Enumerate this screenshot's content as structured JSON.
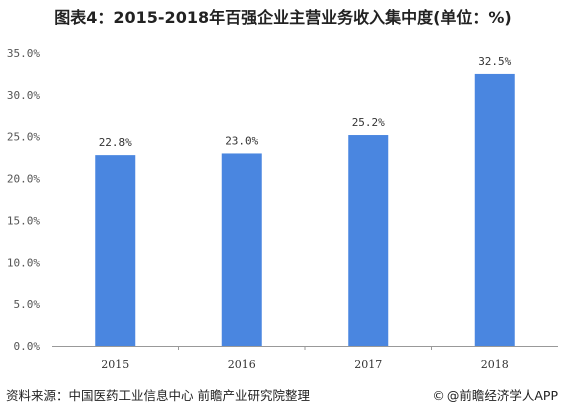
{
  "title": "图表4：2015-2018年百强企业主营业务收入集中度(单位：%)",
  "footer": {
    "source": "资料来源：中国医药工业信息中心 前瞻产业研究院整理",
    "brand_icon": "copyright-circle-icon",
    "brand": "@前瞻经济学人APP"
  },
  "colors": {
    "bar": "#4a86e0",
    "axis": "#999999",
    "text": "#222222"
  },
  "chart_data": {
    "type": "bar",
    "categories": [
      "2015",
      "2016",
      "2017",
      "2018"
    ],
    "values": [
      22.8,
      23.0,
      25.2,
      32.5
    ],
    "data_labels": [
      "22.8%",
      "23.0%",
      "25.2%",
      "32.5%"
    ],
    "y_ticks": [
      "0.0%",
      "5.0%",
      "10.0%",
      "15.0%",
      "20.0%",
      "25.0%",
      "30.0%",
      "35.0%"
    ],
    "ylim": [
      0,
      35
    ],
    "grid": false,
    "legend": "none"
  }
}
